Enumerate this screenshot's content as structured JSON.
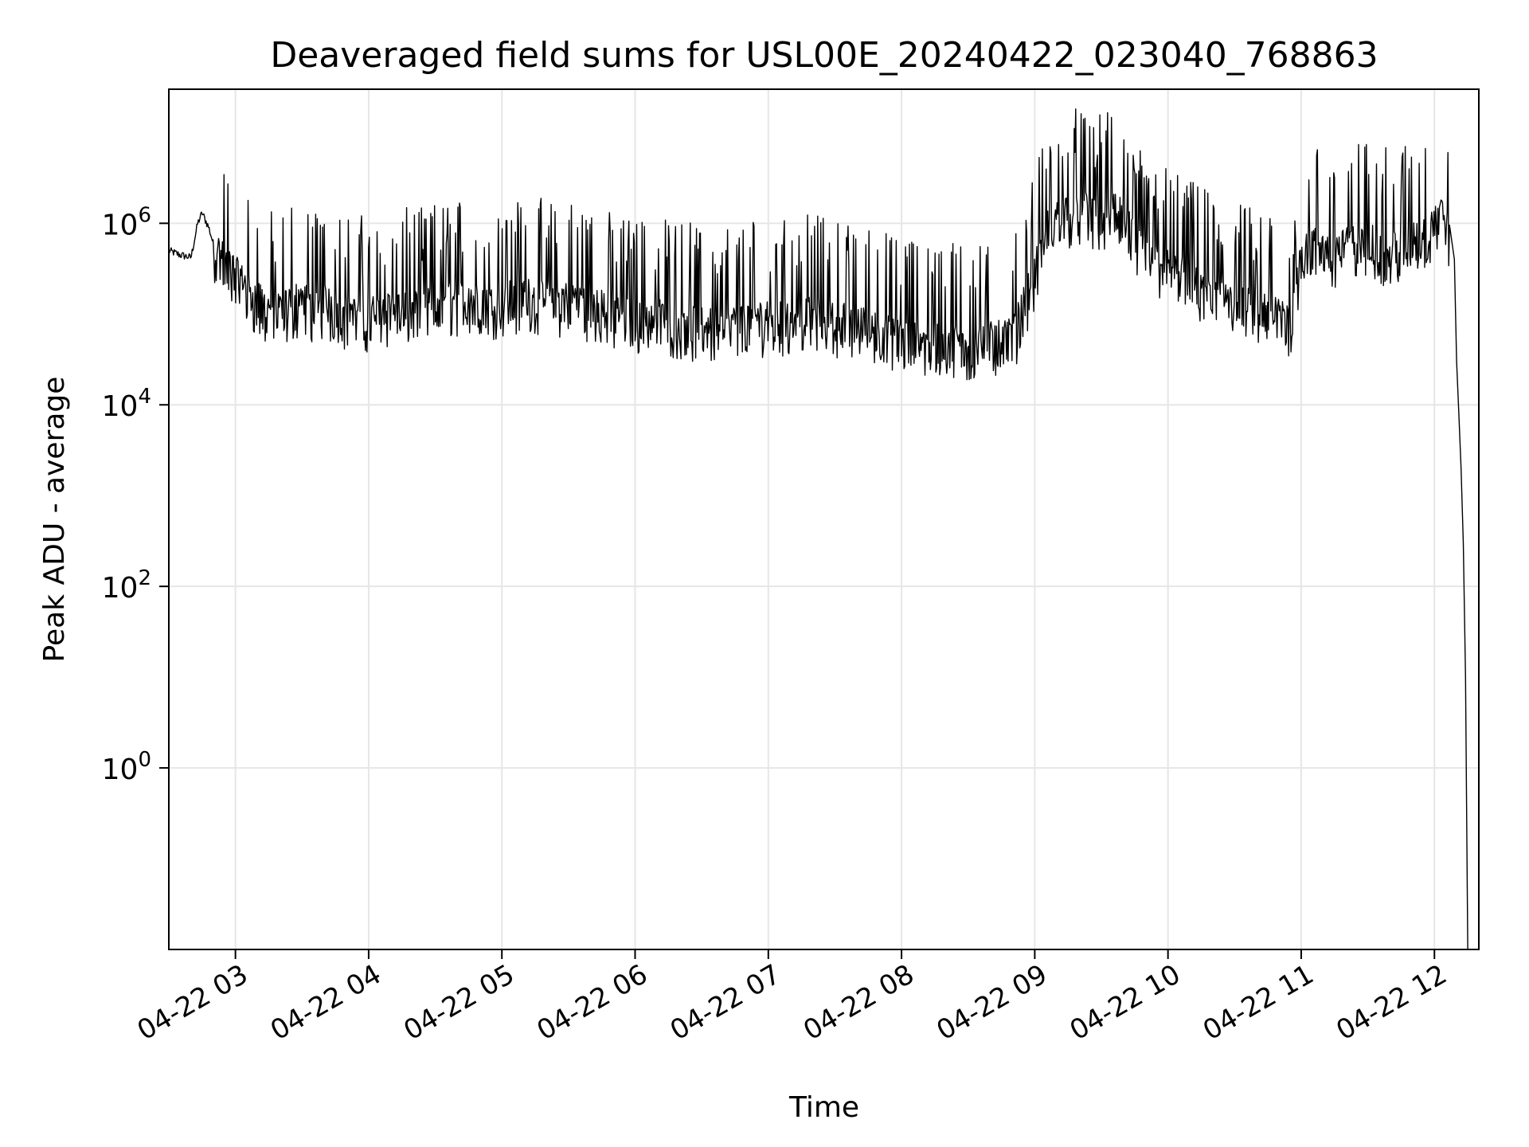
{
  "chart_data": {
    "type": "line",
    "title": "Deaveraged field sums for USL00E_20240422_023040_768863",
    "xlabel": "Time",
    "ylabel": "Peak ADU - average",
    "xlim": [
      "2024-04-22 02:30",
      "2024-04-22 12:20"
    ],
    "ylim": [
      0.01,
      30000000
    ],
    "y_scale": "log",
    "grid": true,
    "line_color": "#000000",
    "grid_color": "#e6e6e6",
    "x_ticks": [
      {
        "label": "04-22 03",
        "time": "2024-04-22 03:00"
      },
      {
        "label": "04-22 04",
        "time": "2024-04-22 04:00"
      },
      {
        "label": "04-22 05",
        "time": "2024-04-22 05:00"
      },
      {
        "label": "04-22 06",
        "time": "2024-04-22 06:00"
      },
      {
        "label": "04-22 07",
        "time": "2024-04-22 07:00"
      },
      {
        "label": "04-22 08",
        "time": "2024-04-22 08:00"
      },
      {
        "label": "04-22 09",
        "time": "2024-04-22 09:00"
      },
      {
        "label": "04-22 10",
        "time": "2024-04-22 10:00"
      },
      {
        "label": "04-22 11",
        "time": "2024-04-22 11:00"
      },
      {
        "label": "04-22 12",
        "time": "2024-04-22 12:00"
      }
    ],
    "y_ticks": [
      {
        "base": "10",
        "exp": "6",
        "value": 1000000
      },
      {
        "base": "10",
        "exp": "4",
        "value": 10000
      },
      {
        "base": "10",
        "exp": "2",
        "value": 100
      },
      {
        "base": "10",
        "exp": "0",
        "value": 1
      }
    ],
    "series": [
      {
        "x": [
          "02:30",
          "02:35",
          "02:40",
          "02:43",
          "02:45",
          "02:48",
          "02:50",
          "02:55",
          "03:00",
          "03:05",
          "03:10",
          "03:15",
          "03:20",
          "03:25",
          "03:30",
          "03:35",
          "03:40",
          "03:45",
          "03:50",
          "03:55",
          "04:00",
          "04:05",
          "04:10",
          "04:15",
          "04:20",
          "04:25",
          "04:30",
          "04:35",
          "04:40",
          "04:45",
          "04:50",
          "04:55",
          "05:00",
          "05:10",
          "05:20",
          "05:30",
          "05:40",
          "05:50",
          "06:00",
          "06:10",
          "06:20",
          "06:30",
          "06:40",
          "06:50",
          "07:00",
          "07:10",
          "07:20",
          "07:30",
          "07:40",
          "07:50",
          "08:00",
          "08:10",
          "08:20",
          "08:30",
          "08:40",
          "08:50",
          "09:00",
          "09:05",
          "09:10",
          "09:15",
          "09:20",
          "09:25",
          "09:30",
          "09:35",
          "09:40",
          "09:45",
          "09:50",
          "10:00",
          "10:10",
          "10:20",
          "10:30",
          "10:40",
          "10:50",
          "10:55",
          "11:00",
          "11:05",
          "11:10",
          "11:15",
          "11:20",
          "11:25",
          "11:30",
          "11:35",
          "11:40",
          "11:45",
          "11:50",
          "11:55",
          "12:00",
          "12:03",
          "12:05",
          "12:07",
          "12:09",
          "12:10",
          "12:11",
          "12:12",
          "12:13",
          "12:14",
          "12:15"
        ],
        "y": [
          500000,
          450000,
          420000,
          1000000,
          1300000,
          900000,
          600000,
          400000,
          300000,
          200000,
          150000,
          120000,
          110000,
          140000,
          160000,
          120000,
          140000,
          130000,
          110000,
          100000,
          110000,
          105000,
          115000,
          120000,
          130000,
          125000,
          140000,
          150000,
          160000,
          150000,
          140000,
          130000,
          160000,
          170000,
          160000,
          150000,
          140000,
          110000,
          100000,
          100000,
          90000,
          80000,
          75000,
          90000,
          95000,
          100000,
          105000,
          95000,
          85000,
          70000,
          60000,
          55000,
          52000,
          50000,
          55000,
          60000,
          300000,
          900000,
          1200000,
          1500000,
          1600000,
          1400000,
          1300000,
          1500000,
          1200000,
          700000,
          500000,
          350000,
          250000,
          180000,
          150000,
          120000,
          100000,
          90000,
          500000,
          600000,
          550000,
          500000,
          600000,
          650000,
          700000,
          600000,
          550000,
          600000,
          700000,
          800000,
          1000000,
          1300000,
          1100000,
          800000,
          400000,
          30000,
          8000,
          2000,
          300,
          10,
          0.01
        ]
      }
    ]
  }
}
